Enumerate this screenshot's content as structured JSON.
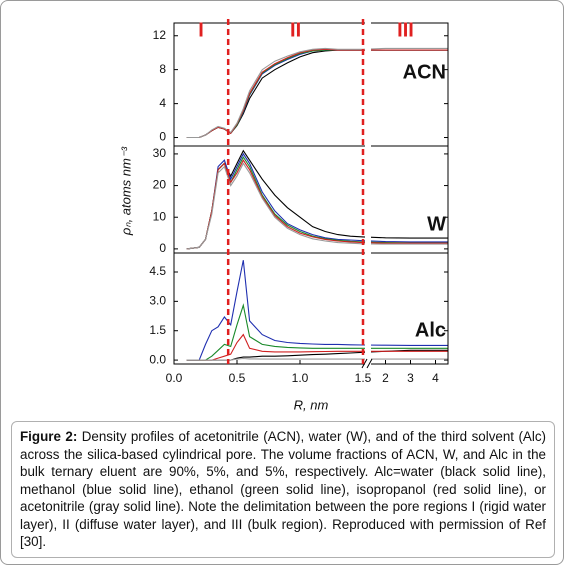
{
  "x_axis": {
    "label": "R, nm",
    "x": [
      0.1,
      0.2,
      0.25,
      0.3,
      0.35,
      0.4,
      0.45,
      0.5,
      0.55,
      0.6,
      0.7,
      0.8,
      0.9,
      1.0,
      1.1,
      1.2,
      1.3,
      1.4,
      1.5,
      2,
      3,
      4,
      4.5
    ],
    "xlim": [
      0,
      4.5
    ],
    "xbreak": 1.5,
    "xticks": [
      {
        "value": 0,
        "label": "0.0"
      },
      0.5,
      {
        "value": 1,
        "label": "1.0"
      },
      1.5,
      2,
      3,
      4
    ]
  },
  "y_label": "ρₙ, atoms nm⁻³",
  "regions": {
    "labels": [
      "I",
      "II",
      "III"
    ],
    "boundaries": [
      0.43,
      1.5
    ],
    "color": "#e02020"
  },
  "chart_data": [
    {
      "type": "line",
      "annotation": "ACN",
      "ylim": [
        -1,
        13.5
      ],
      "yticks": [
        0,
        4,
        8,
        12
      ],
      "series": [
        {
          "color": "#000000",
          "values": [
            0,
            0,
            0.3,
            0.8,
            1.2,
            1.0,
            0.5,
            1.4,
            2.8,
            4.6,
            7.0,
            8.0,
            8.8,
            9.5,
            10.0,
            10.2,
            10.3,
            10.3,
            10.3,
            10.3,
            10.3,
            10.3,
            10.3
          ]
        },
        {
          "color": "#1f2fb0",
          "values": [
            0,
            0,
            0.3,
            0.8,
            1.2,
            1.0,
            0.5,
            1.5,
            3.0,
            5.0,
            7.5,
            8.5,
            9.2,
            9.8,
            10.2,
            10.3,
            10.3,
            10.3,
            10.3,
            10.3,
            10.3,
            10.3,
            10.3
          ]
        },
        {
          "color": "#1a8a2a",
          "values": [
            0,
            0,
            0.3,
            0.8,
            1.2,
            1.0,
            0.5,
            1.5,
            3.1,
            5.1,
            7.6,
            8.6,
            9.3,
            9.9,
            10.2,
            10.3,
            10.3,
            10.3,
            10.3,
            10.3,
            10.3,
            10.3,
            10.3
          ]
        },
        {
          "color": "#d02020",
          "values": [
            0,
            0,
            0.3,
            0.8,
            1.2,
            1.0,
            0.5,
            1.6,
            3.2,
            5.2,
            7.7,
            8.7,
            9.4,
            10.0,
            10.3,
            10.4,
            10.3,
            10.3,
            10.3,
            10.3,
            10.3,
            10.3,
            10.3
          ]
        },
        {
          "color": "#999999",
          "values": [
            0,
            0,
            0.3,
            0.9,
            1.3,
            1.1,
            0.6,
            1.7,
            3.4,
            5.5,
            8.0,
            9.0,
            9.6,
            10.1,
            10.4,
            10.5,
            10.4,
            10.4,
            10.4,
            10.5,
            10.5,
            10.5,
            10.5
          ]
        }
      ]
    },
    {
      "type": "line",
      "annotation": "W",
      "ylim": [
        -1.3,
        32.5
      ],
      "yticks": [
        0,
        10,
        20,
        30
      ],
      "series": [
        {
          "color": "#000000",
          "values": [
            0,
            0.5,
            3,
            12,
            25,
            27,
            23,
            27,
            31,
            28,
            22,
            17,
            13,
            10,
            7,
            5.5,
            4.5,
            4,
            3.8,
            3.5,
            3.4,
            3.4,
            3.4
          ]
        },
        {
          "color": "#1f2fb0",
          "values": [
            0,
            0.5,
            3,
            12,
            26,
            28,
            22,
            26,
            30,
            27,
            18,
            12,
            8,
            6,
            4.5,
            3.5,
            3,
            2.8,
            2.6,
            2.3,
            2.2,
            2.2,
            2.2
          ]
        },
        {
          "color": "#1a8a2a",
          "values": [
            0,
            0.5,
            3,
            12,
            25,
            27,
            21,
            25,
            29,
            26,
            17,
            11,
            7.5,
            5.5,
            4,
            3.2,
            2.7,
            2.4,
            2.2,
            2,
            1.9,
            1.9,
            1.9
          ]
        },
        {
          "color": "#d02020",
          "values": [
            0,
            0.5,
            3,
            12,
            25,
            27,
            21,
            24,
            28,
            25,
            16.5,
            10.5,
            7,
            5,
            3.8,
            3,
            2.5,
            2.2,
            2,
            1.8,
            1.8,
            1.8,
            1.8
          ]
        },
        {
          "color": "#999999",
          "values": [
            0,
            0.5,
            3,
            11,
            24,
            26,
            20,
            23,
            27,
            24,
            16,
            10,
            6.5,
            4.5,
            3.2,
            2.5,
            2,
            1.8,
            1.6,
            1.5,
            1.5,
            1.5,
            1.5
          ]
        }
      ]
    },
    {
      "type": "line",
      "annotation": "Alc",
      "ylim": [
        -0.2,
        5.47
      ],
      "yticks": [
        {
          "value": 0,
          "label": "0.0"
        },
        1.5,
        {
          "value": 3,
          "label": "3.0"
        },
        4.5
      ],
      "series": [
        {
          "color": "#000000",
          "values": [
            0,
            0,
            0,
            0,
            0,
            0,
            0,
            0.1,
            0.15,
            0.15,
            0.2,
            0.2,
            0.22,
            0.25,
            0.28,
            0.3,
            0.33,
            0.36,
            0.4,
            0.45,
            0.5,
            0.5,
            0.5
          ]
        },
        {
          "color": "#1f2fb0",
          "values": [
            0,
            0,
            0.8,
            1.5,
            1.7,
            2.2,
            1.8,
            3.5,
            5.1,
            2.0,
            1.3,
            1.0,
            0.9,
            0.85,
            0.82,
            0.8,
            0.8,
            0.78,
            0.77,
            0.76,
            0.75,
            0.75,
            0.75
          ]
        },
        {
          "color": "#1a8a2a",
          "values": [
            0,
            0,
            0,
            0.2,
            0.5,
            0.8,
            0.7,
            1.8,
            2.8,
            1.2,
            0.8,
            0.7,
            0.65,
            0.62,
            0.6,
            0.6,
            0.6,
            0.6,
            0.6,
            0.6,
            0.6,
            0.6,
            0.6
          ]
        },
        {
          "color": "#d02020",
          "values": [
            0,
            0,
            0,
            0,
            0.1,
            0.2,
            0.3,
            0.9,
            1.3,
            0.6,
            0.45,
            0.42,
            0.42,
            0.42,
            0.43,
            0.44,
            0.45,
            0.45,
            0.45,
            0.45,
            0.45,
            0.45,
            0.45
          ]
        },
        {
          "color": "#999999",
          "values": [
            0,
            0,
            0,
            0,
            0,
            0,
            0,
            0.05,
            0.08,
            0.06,
            0.05,
            0.05,
            0.05,
            0.05,
            0.05,
            0.05,
            0.05,
            0.05,
            0.05,
            0.05,
            0.05,
            0.05,
            0.05
          ]
        }
      ]
    }
  ],
  "caption": {
    "label": "Figure 2:",
    "text": " Density profiles of acetonitrile (ACN), water (W), and of the third solvent (Alc) across the silica-based cylindrical pore. The volume fractions of ACN, W, and Alc in the bulk ternary eluent are 90%, 5%, and 5%, respectively. Alc=water (black solid line), methanol (blue solid line), ethanol (green solid line), isopropanol (red solid line), or acetonitrile (gray solid line). Note the delimitation between the pore regions I (rigid water layer), II (diffuse water layer), and III (bulk region). Reproduced with permission of Ref [30]."
  }
}
